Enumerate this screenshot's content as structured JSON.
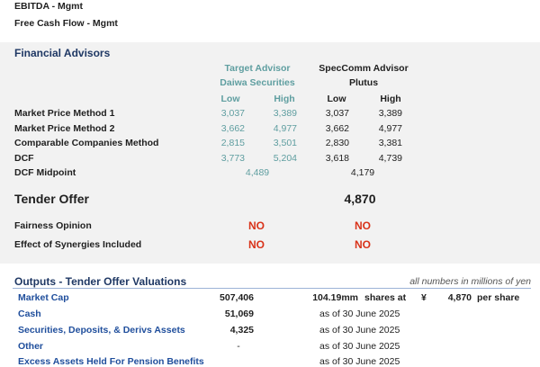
{
  "top": {
    "line1": "EBITDA - Mgmt",
    "line2": "Free Cash Flow - Mgmt"
  },
  "advisors": {
    "title": "Financial Advisors",
    "target_header": "Target Advisor",
    "target_name": "Daiwa Securities",
    "spec_header": "SpecComm Advisor",
    "spec_name": "Plutus",
    "low": "Low",
    "high": "High",
    "rows": [
      {
        "label": "Market Price Method 1",
        "d_low": "3,037",
        "d_high": "3,389",
        "p_low": "3,037",
        "p_high": "3,389"
      },
      {
        "label": "Market Price Method 2",
        "d_low": "3,662",
        "d_high": "4,977",
        "p_low": "3,662",
        "p_high": "4,977"
      },
      {
        "label": "Comparable Companies Method",
        "d_low": "2,815",
        "d_high": "3,501",
        "p_low": "2,830",
        "p_high": "3,381"
      },
      {
        "label": "DCF",
        "d_low": "3,773",
        "d_high": "5,204",
        "p_low": "3,618",
        "p_high": "4,739"
      }
    ],
    "midpoint_label": "DCF Midpoint",
    "midpoint_d": "4,489",
    "midpoint_p": "4,179",
    "tender_label": "Tender Offer",
    "tender_value": "4,870",
    "fairness_label": "Fairness Opinion",
    "fairness_d": "NO",
    "fairness_p": "NO",
    "synergies_label": "Effect of Synergies Included",
    "synergies_d": "NO",
    "synergies_p": "NO"
  },
  "outputs": {
    "title": "Outputs - Tender Offer Valuations",
    "note": "all numbers in millions of yen",
    "market_cap": {
      "label": "Market Cap",
      "value": "507,406",
      "shares": "104.19mm",
      "shares_at": "shares at",
      "yen": "¥",
      "price": "4,870",
      "per_share": "per share"
    },
    "rows": [
      {
        "label": "Cash",
        "value": "51,069",
        "asof": "as of 30 June 2025"
      },
      {
        "label": "Securities, Deposits, & Derivs Assets",
        "value": "4,325",
        "asof": "as of 30 June 2025"
      },
      {
        "label": "Other",
        "value": "-",
        "asof": "as of 30 June 2025"
      },
      {
        "label": "Excess Assets Held For Pension Benefits",
        "value": "",
        "asof": "as of 30 June 2025"
      }
    ]
  }
}
